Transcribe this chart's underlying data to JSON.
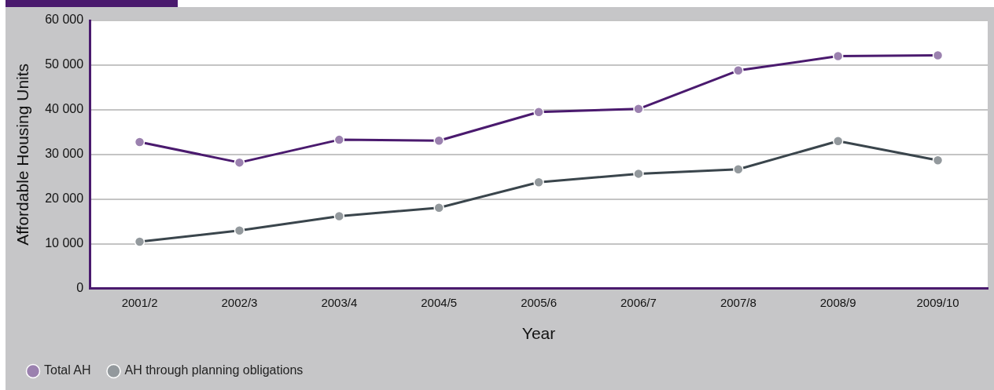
{
  "chart_data": {
    "type": "line",
    "xlabel": "Year",
    "ylabel": "Affordable Housing Units",
    "categories": [
      "2001/2",
      "2002/3",
      "2003/4",
      "2004/5",
      "2005/6",
      "2006/7",
      "2007/8",
      "2008/9",
      "2009/10"
    ],
    "series": [
      {
        "name": "Total AH",
        "color": "#4a1a6e",
        "values": [
          32800,
          28200,
          33300,
          33100,
          39500,
          40200,
          48800,
          52000,
          52200
        ]
      },
      {
        "name": "AH through planning obligations",
        "color": "#3a454c",
        "values": [
          10500,
          13000,
          16200,
          18100,
          23800,
          25700,
          26700,
          33000,
          28700
        ]
      }
    ],
    "ylim": [
      0,
      60000
    ],
    "yticks": [
      {
        "value": 0,
        "label": "0"
      },
      {
        "value": 10000,
        "label": "10 000"
      },
      {
        "value": 20000,
        "label": "20 000"
      },
      {
        "value": 30000,
        "label": "30 000"
      },
      {
        "value": 40000,
        "label": "40 000"
      },
      {
        "value": 50000,
        "label": "50 000"
      },
      {
        "value": 60000,
        "label": "60 000"
      }
    ],
    "grid": "y",
    "legend": "bottom left",
    "marker": "circle",
    "line_style": "solid"
  }
}
